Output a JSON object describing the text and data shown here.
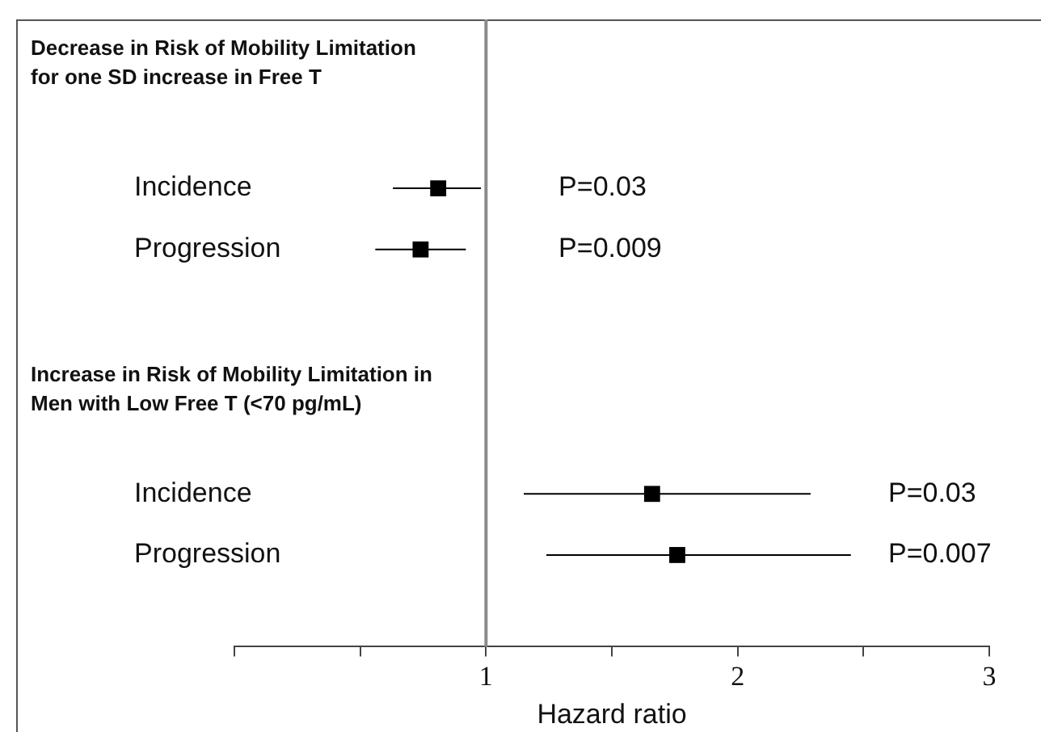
{
  "chart_data": {
    "type": "scatter",
    "orientation": "horizontal",
    "marker": "square",
    "color": "#000000",
    "grid": false,
    "legend": false,
    "categories": [
      null,
      null,
      "Incidence",
      "Progression",
      null,
      null,
      null,
      "Incidence",
      "Progression",
      null
    ],
    "values": [
      null,
      null,
      0.81,
      0.74,
      null,
      null,
      null,
      1.66,
      1.76,
      null
    ],
    "errors": [
      null,
      null,
      [
        0.63,
        0.98
      ],
      [
        0.56,
        0.92
      ],
      null,
      null,
      null,
      [
        1.15,
        2.29
      ],
      [
        1.24,
        2.45
      ],
      null
    ],
    "xlim": [
      0,
      3
    ],
    "xticks": [
      {
        "value": 0,
        "label": null
      },
      {
        "value": 0.5,
        "label": null
      },
      1,
      {
        "value": 1.5,
        "label": null
      },
      2,
      {
        "value": 2.5,
        "label": null
      },
      3
    ],
    "xlabel": "Hazard ratio",
    "ref_lines": [
      {
        "axis": "x",
        "value": 1,
        "color": "#8a8a8a"
      }
    ],
    "annotations": [
      "Decrease in Risk of Mobility Limitation for one SD increase in Free T",
      "Increase in Risk of Mobility Limitation in Men with Low Free T (<70 pg/mL)",
      "P=0.03",
      "P=0.009",
      "P=0.03",
      "P=0.007"
    ]
  }
}
